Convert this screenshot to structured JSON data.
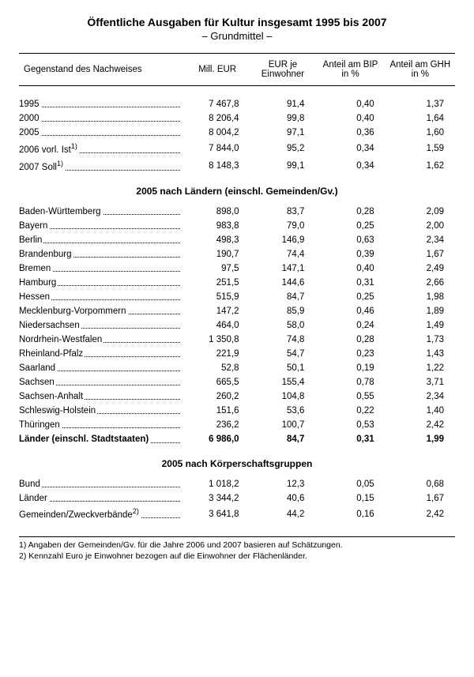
{
  "title": "Öffentliche Ausgaben für Kultur insgesamt 1995 bis 2007",
  "subtitle": "– Grundmittel –",
  "headers": {
    "c0": "Gegenstand des Nachweises",
    "c1": "Mill. EUR",
    "c2": "EUR je Einwohner",
    "c3": "Anteil am BIP in %",
    "c4": "Anteil am GHH in %"
  },
  "years": [
    {
      "label": "1995",
      "sup": "",
      "v": [
        "7 467,8",
        "91,4",
        "0,40",
        "1,37"
      ]
    },
    {
      "label": "2000",
      "sup": "",
      "v": [
        "8 206,4",
        "99,8",
        "0,40",
        "1,64"
      ]
    },
    {
      "label": "2005",
      "sup": "",
      "v": [
        "8 004,2",
        "97,1",
        "0,36",
        "1,60"
      ]
    },
    {
      "label": "2006 vorl. Ist",
      "sup": "1)",
      "v": [
        "7 844,0",
        "95,2",
        "0,34",
        "1,59"
      ]
    },
    {
      "label": "2007 Soll",
      "sup": "1)",
      "v": [
        "8 148,3",
        "99,1",
        "0,34",
        "1,62"
      ]
    }
  ],
  "section1_title": "2005 nach Ländern (einschl. Gemeinden/Gv.)",
  "laender": [
    {
      "label": "Baden-Württemberg",
      "v": [
        "898,0",
        "83,7",
        "0,28",
        "2,09"
      ]
    },
    {
      "label": "Bayern",
      "v": [
        "983,8",
        "79,0",
        "0,25",
        "2,00"
      ]
    },
    {
      "label": "Berlin",
      "v": [
        "498,3",
        "146,9",
        "0,63",
        "2,34"
      ]
    },
    {
      "label": "Brandenburg",
      "v": [
        "190,7",
        "74,4",
        "0,39",
        "1,67"
      ]
    },
    {
      "label": "Bremen",
      "v": [
        "97,5",
        "147,1",
        "0,40",
        "2,49"
      ]
    },
    {
      "label": "Hamburg",
      "v": [
        "251,5",
        "144,6",
        "0,31",
        "2,66"
      ]
    },
    {
      "label": "Hessen",
      "v": [
        "515,9",
        "84,7",
        "0,25",
        "1,98"
      ]
    },
    {
      "label": "Mecklenburg-Vorpommern",
      "v": [
        "147,2",
        "85,9",
        "0,46",
        "1,89"
      ]
    },
    {
      "label": "Niedersachsen",
      "v": [
        "464,0",
        "58,0",
        "0,24",
        "1,49"
      ]
    },
    {
      "label": "Nordrhein-Westfalen",
      "v": [
        "1 350,8",
        "74,8",
        "0,28",
        "1,73"
      ]
    },
    {
      "label": "Rheinland-Pfalz",
      "v": [
        "221,9",
        "54,7",
        "0,23",
        "1,43"
      ]
    },
    {
      "label": "Saarland",
      "v": [
        "52,8",
        "50,1",
        "0,19",
        "1,22"
      ]
    },
    {
      "label": "Sachsen",
      "v": [
        "665,5",
        "155,4",
        "0,78",
        "3,71"
      ]
    },
    {
      "label": "Sachsen-Anhalt",
      "v": [
        "260,2",
        "104,8",
        "0,55",
        "2,34"
      ]
    },
    {
      "label": "Schleswig-Holstein",
      "v": [
        "151,6",
        "53,6",
        "0,22",
        "1,40"
      ]
    },
    {
      "label": "Thüringen",
      "v": [
        "236,2",
        "100,7",
        "0,53",
        "2,42"
      ]
    }
  ],
  "laender_total": {
    "label": "Länder (einschl. Stadtstaaten)",
    "v": [
      "6 986,0",
      "84,7",
      "0,31",
      "1,99"
    ]
  },
  "section2_title": "2005 nach Körperschaftsgruppen",
  "koerper": [
    {
      "label": "Bund",
      "sup": "",
      "v": [
        "1 018,2",
        "12,3",
        "0,05",
        "0,68"
      ]
    },
    {
      "label": "Länder",
      "sup": "",
      "v": [
        "3 344,2",
        "40,6",
        "0,15",
        "1,67"
      ]
    },
    {
      "label": "Gemeinden/Zweckverbände",
      "sup": "2)",
      "v": [
        "3 641,8",
        "44,2",
        "0,16",
        "2,42"
      ]
    }
  ],
  "footnotes": [
    "1) Angaben der Gemeinden/Gv. für die Jahre 2006 und 2007 basieren auf Schätzungen.",
    "2) Kennzahl Euro je Einwohner bezogen auf die Einwohner der Flächenländer."
  ]
}
